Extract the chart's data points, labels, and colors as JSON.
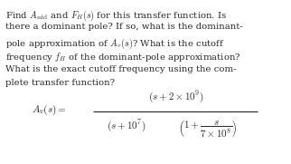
{
  "background_color": "#ffffff",
  "text_lines": [
    "Find $A_{\\mathrm{mid}}$ and $F_H(s)$ for this transfer function. Is",
    "there a dominant pole? If so, what is the dominant-",
    "pole approximation of $A_v(s)$? What is the cutoff",
    "frequency $f_H$ of the dominant-pole approximation?",
    "What is the exact cutoff frequency using the com-",
    "plete transfer function?"
  ],
  "text_color": "#2a2a2a",
  "font_size_text": 7.3,
  "font_size_formula": 8.0,
  "fig_width": 3.22,
  "fig_height": 1.81,
  "dpi": 100
}
